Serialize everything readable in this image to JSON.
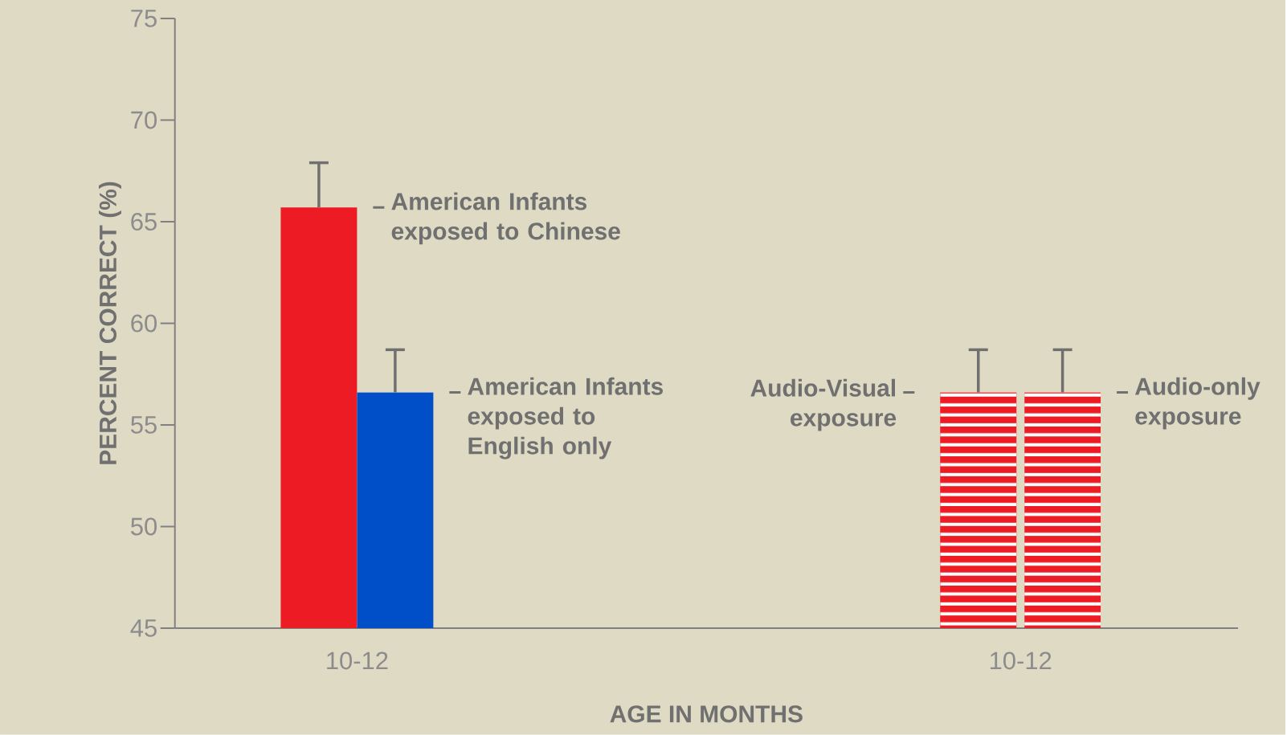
{
  "chart_data": {
    "type": "bar",
    "xlabel": "AGE IN MONTHS",
    "ylabel": "PERCENT CORRECT (%)",
    "categories": [
      "10-12",
      "10-12"
    ],
    "ylim": [
      45,
      75
    ],
    "yticks": [
      45,
      50,
      55,
      60,
      65,
      70,
      75
    ],
    "series": [
      {
        "name": "American Infants exposed to Chinese",
        "color": "#ed1c24",
        "values": [
          65.7,
          null
        ],
        "errors": [
          [
            65.7,
            67.9
          ],
          null
        ]
      },
      {
        "name": "American Infants exposed to English only",
        "color": "#004ec8",
        "values": [
          56.6,
          null
        ],
        "errors": [
          [
            56.6,
            58.7
          ],
          null
        ]
      },
      {
        "name": "Audio-Visual exposure",
        "color": "#ed1c24",
        "values": [
          null,
          56.6
        ],
        "errors": [
          null,
          [
            56.6,
            58.7
          ]
        ]
      },
      {
        "name": "Audio-only exposure",
        "color": "#ed1c24",
        "values": [
          null,
          56.6
        ],
        "errors": [
          null,
          [
            56.6,
            58.7
          ]
        ]
      }
    ]
  }
}
